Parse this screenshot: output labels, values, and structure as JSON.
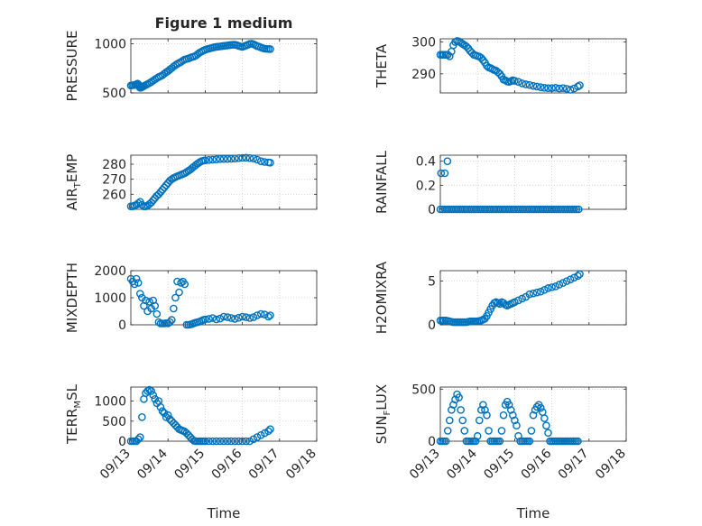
{
  "chart_data": [
    {
      "type": "scatter",
      "title": "Figure 1 medium",
      "ylabel": "PRESSURE",
      "xlabel": "",
      "xlim": [
        0,
        5
      ],
      "ylim": [
        500,
        1050
      ],
      "yticks": [
        500,
        1000
      ],
      "ytick_labels": [
        "500",
        "1000"
      ],
      "xticks": [
        0,
        1,
        2,
        3,
        4,
        5
      ],
      "xtick_labels": [],
      "marker_color": "#0072BD",
      "x": [
        0.0,
        0.04,
        0.08,
        0.12,
        0.15,
        0.18,
        0.2,
        0.22,
        0.24,
        0.26,
        0.28,
        0.3,
        0.33,
        0.36,
        0.4,
        0.44,
        0.5,
        0.55,
        0.6,
        0.65,
        0.7,
        0.75,
        0.8,
        0.85,
        0.9,
        0.95,
        1.0,
        1.05,
        1.1,
        1.15,
        1.2,
        1.25,
        1.3,
        1.35,
        1.4,
        1.45,
        1.5,
        1.55,
        1.6,
        1.65,
        1.7,
        1.75,
        1.8,
        1.85,
        1.9,
        1.95,
        2.0,
        2.05,
        2.1,
        2.15,
        2.2,
        2.25,
        2.3,
        2.35,
        2.4,
        2.45,
        2.5,
        2.55,
        2.6,
        2.65,
        2.7,
        2.75,
        2.8,
        2.85,
        2.9,
        2.95,
        3.0,
        3.05,
        3.1,
        3.15,
        3.2,
        3.25,
        3.3,
        3.35,
        3.4,
        3.45,
        3.5,
        3.55,
        3.6,
        3.65,
        3.7,
        3.75
      ],
      "y": [
        575,
        578,
        580,
        582,
        588,
        595,
        588,
        570,
        555,
        552,
        555,
        560,
        565,
        572,
        580,
        588,
        600,
        612,
        625,
        638,
        650,
        662,
        670,
        680,
        695,
        710,
        722,
        738,
        752,
        768,
        782,
        795,
        805,
        815,
        828,
        840,
        845,
        850,
        858,
        865,
        870,
        880,
        895,
        910,
        920,
        930,
        938,
        945,
        950,
        955,
        960,
        965,
        968,
        970,
        972,
        975,
        978,
        980,
        982,
        985,
        988,
        990,
        990,
        985,
        978,
        972,
        968,
        975,
        982,
        990,
        998,
        1000,
        995,
        985,
        975,
        970,
        962,
        955,
        950,
        948,
        946,
        945
      ]
    },
    {
      "type": "scatter",
      "title": "",
      "ylabel": "THETA",
      "xlabel": "",
      "xlim": [
        0,
        5
      ],
      "ylim": [
        284,
        301
      ],
      "yticks": [
        290,
        300
      ],
      "ytick_labels": [
        "290",
        "300"
      ],
      "xticks": [
        0,
        1,
        2,
        3,
        4,
        5
      ],
      "xtick_labels": [],
      "marker_color": "#0072BD",
      "x": [
        0.0,
        0.05,
        0.1,
        0.15,
        0.2,
        0.25,
        0.3,
        0.35,
        0.4,
        0.45,
        0.5,
        0.55,
        0.6,
        0.65,
        0.7,
        0.75,
        0.8,
        0.85,
        0.9,
        0.95,
        1.0,
        1.05,
        1.1,
        1.15,
        1.2,
        1.25,
        1.3,
        1.35,
        1.4,
        1.45,
        1.5,
        1.55,
        1.6,
        1.65,
        1.7,
        1.75,
        1.8,
        1.85,
        1.9,
        1.95,
        2.0,
        2.1,
        2.2,
        2.3,
        2.4,
        2.5,
        2.6,
        2.7,
        2.8,
        2.9,
        3.0,
        3.1,
        3.2,
        3.3,
        3.4,
        3.5,
        3.6,
        3.7,
        3.75
      ],
      "y": [
        296,
        296,
        296,
        296,
        296,
        295.5,
        297,
        299,
        300,
        300.3,
        300.2,
        299.8,
        299.4,
        299,
        298.6,
        298,
        297.2,
        296.6,
        296,
        295.8,
        295.6,
        295.4,
        295,
        294.3,
        293.5,
        292.5,
        292,
        291.8,
        291.5,
        291.2,
        291,
        290.5,
        290,
        289.2,
        288.2,
        288,
        287.6,
        287.5,
        287.7,
        288,
        287.8,
        287.5,
        287,
        286.7,
        286.5,
        286.2,
        286,
        285.8,
        285.6,
        285.5,
        285.5,
        285.6,
        285.4,
        285.5,
        285.3,
        285.0,
        285.4,
        286,
        286.4
      ]
    },
    {
      "type": "scatter",
      "title": "",
      "ylabel": "AIR_TEMP",
      "ylabel_main": "AIR",
      "ylabel_sub": "T",
      "ylabel_rest": "EMP",
      "xlabel": "",
      "xlim": [
        0,
        5
      ],
      "ylim": [
        250,
        286
      ],
      "yticks": [
        260,
        270,
        280
      ],
      "ytick_labels": [
        "260",
        "270",
        "280"
      ],
      "xticks": [
        0,
        1,
        2,
        3,
        4,
        5
      ],
      "xtick_labels": [],
      "marker_color": "#0072BD",
      "x": [
        0.0,
        0.05,
        0.1,
        0.15,
        0.2,
        0.25,
        0.3,
        0.35,
        0.4,
        0.45,
        0.5,
        0.55,
        0.6,
        0.65,
        0.7,
        0.75,
        0.8,
        0.85,
        0.9,
        0.95,
        1.0,
        1.05,
        1.1,
        1.15,
        1.2,
        1.25,
        1.3,
        1.35,
        1.4,
        1.45,
        1.5,
        1.55,
        1.6,
        1.65,
        1.7,
        1.75,
        1.8,
        1.85,
        1.9,
        1.95,
        2.0,
        2.1,
        2.2,
        2.3,
        2.4,
        2.5,
        2.6,
        2.7,
        2.8,
        2.9,
        3.0,
        3.1,
        3.2,
        3.3,
        3.4,
        3.5,
        3.6,
        3.7,
        3.75
      ],
      "y": [
        252,
        252,
        252.5,
        253,
        254,
        255,
        253,
        252,
        252,
        252.5,
        253.5,
        254.5,
        256,
        257.5,
        259,
        260,
        261.5,
        263,
        264.5,
        266,
        267.5,
        269,
        270,
        270.8,
        271.4,
        272,
        272.5,
        273,
        273.5,
        274,
        274.8,
        275.6,
        276.4,
        277.5,
        278.5,
        279.5,
        280.5,
        281.3,
        282,
        282.4,
        282.6,
        282.8,
        283,
        283.2,
        283.4,
        283.5,
        283.5,
        283.6,
        283.8,
        284,
        284.2,
        284.3,
        284.1,
        283.8,
        283,
        282,
        281.5,
        281.2,
        281
      ]
    },
    {
      "type": "scatter",
      "title": "",
      "ylabel": "RAINFALL",
      "xlabel": "",
      "xlim": [
        0,
        5
      ],
      "ylim": [
        0,
        0.45
      ],
      "yticks": [
        0,
        0.2,
        0.4
      ],
      "ytick_labels": [
        "0",
        "0.2",
        "0.4"
      ],
      "xticks": [
        0,
        1,
        2,
        3,
        4,
        5
      ],
      "xtick_labels": [],
      "marker_color": "#0072BD",
      "x": [
        0.0,
        0.06,
        0.12,
        0.18,
        0.24,
        0.3,
        0.36,
        0.42,
        0.48,
        0.54,
        0.6,
        0.66,
        0.72,
        0.78,
        0.84,
        0.9,
        0.96,
        1.02,
        1.08,
        1.14,
        1.2,
        1.26,
        1.32,
        1.38,
        1.44,
        1.5,
        1.56,
        1.62,
        1.68,
        1.74,
        1.8,
        1.86,
        1.92,
        1.98,
        2.04,
        2.1,
        2.16,
        2.22,
        2.28,
        2.34,
        2.4,
        2.46,
        2.52,
        2.58,
        2.64,
        2.7,
        2.76,
        2.82,
        2.88,
        2.94,
        3.0,
        3.06,
        3.12,
        3.18,
        3.24,
        3.3,
        3.36,
        3.42,
        3.48,
        3.54,
        3.6,
        3.66,
        3.72,
        0.02,
        0.12,
        0.19
      ],
      "y": [
        0,
        0,
        0,
        0,
        0,
        0,
        0,
        0,
        0,
        0,
        0,
        0,
        0,
        0,
        0,
        0,
        0,
        0,
        0,
        0,
        0,
        0,
        0,
        0,
        0,
        0,
        0,
        0,
        0,
        0,
        0,
        0,
        0,
        0,
        0,
        0,
        0,
        0,
        0,
        0,
        0,
        0,
        0,
        0,
        0,
        0,
        0,
        0,
        0,
        0,
        0,
        0,
        0,
        0,
        0,
        0,
        0,
        0,
        0,
        0,
        0,
        0,
        0,
        0.3,
        0.3,
        0.4
      ]
    },
    {
      "type": "scatter",
      "title": "",
      "ylabel": "MIXDEPTH",
      "xlabel": "",
      "xlim": [
        0,
        5
      ],
      "ylim": [
        0,
        2000
      ],
      "yticks": [
        0,
        1000,
        2000
      ],
      "ytick_labels": [
        "0",
        "1000",
        "2000"
      ],
      "xticks": [
        0,
        1,
        2,
        3,
        4,
        5
      ],
      "xtick_labels": [],
      "marker_color": "#0072BD",
      "x": [
        0.0,
        0.05,
        0.1,
        0.15,
        0.2,
        0.25,
        0.3,
        0.35,
        0.4,
        0.45,
        0.5,
        0.55,
        0.6,
        0.65,
        0.7,
        0.75,
        0.8,
        0.85,
        0.9,
        0.95,
        1.0,
        1.05,
        1.1,
        1.15,
        1.2,
        1.25,
        1.3,
        1.35,
        1.4,
        1.45,
        1.5,
        1.55,
        1.6,
        1.65,
        1.7,
        1.75,
        1.8,
        1.85,
        1.9,
        1.95,
        2.0,
        2.1,
        2.2,
        2.3,
        2.4,
        2.5,
        2.6,
        2.7,
        2.8,
        2.9,
        3.0,
        3.1,
        3.2,
        3.3,
        3.4,
        3.5,
        3.6,
        3.7,
        3.75
      ],
      "y": [
        1700,
        1600,
        1500,
        1700,
        1550,
        1150,
        1000,
        700,
        900,
        500,
        850,
        600,
        900,
        700,
        400,
        100,
        50,
        50,
        50,
        60,
        50,
        100,
        180,
        600,
        1000,
        1600,
        1200,
        1550,
        1600,
        1500,
        0,
        0,
        10,
        30,
        60,
        80,
        100,
        120,
        150,
        180,
        200,
        220,
        250,
        200,
        230,
        300,
        280,
        250,
        220,
        260,
        300,
        280,
        250,
        280,
        350,
        400,
        380,
        300,
        350
      ]
    },
    {
      "type": "scatter",
      "title": "",
      "ylabel": "H2OMIXRA",
      "xlabel": "",
      "xlim": [
        0,
        5
      ],
      "ylim": [
        0,
        6.2
      ],
      "yticks": [
        0,
        5
      ],
      "ytick_labels": [
        "0",
        "5"
      ],
      "xticks": [
        0,
        1,
        2,
        3,
        4,
        5
      ],
      "xtick_labels": [],
      "marker_color": "#0072BD",
      "x": [
        0.0,
        0.05,
        0.1,
        0.15,
        0.2,
        0.25,
        0.3,
        0.35,
        0.4,
        0.45,
        0.5,
        0.55,
        0.6,
        0.65,
        0.7,
        0.75,
        0.8,
        0.85,
        0.9,
        0.95,
        1.0,
        1.05,
        1.1,
        1.15,
        1.2,
        1.25,
        1.3,
        1.35,
        1.4,
        1.45,
        1.5,
        1.55,
        1.6,
        1.65,
        1.7,
        1.75,
        1.8,
        1.85,
        1.9,
        1.95,
        2.0,
        2.1,
        2.2,
        2.3,
        2.4,
        2.5,
        2.6,
        2.7,
        2.8,
        2.9,
        3.0,
        3.1,
        3.2,
        3.3,
        3.4,
        3.5,
        3.6,
        3.7,
        3.75
      ],
      "y": [
        0.5,
        0.5,
        0.5,
        0.5,
        0.45,
        0.4,
        0.35,
        0.3,
        0.3,
        0.3,
        0.3,
        0.3,
        0.3,
        0.3,
        0.3,
        0.35,
        0.4,
        0.4,
        0.4,
        0.4,
        0.4,
        0.45,
        0.5,
        0.6,
        0.7,
        1.0,
        1.4,
        1.8,
        2.2,
        2.5,
        2.6,
        2.5,
        2.4,
        2.6,
        2.5,
        2.3,
        2.2,
        2.3,
        2.4,
        2.5,
        2.6,
        2.8,
        3.0,
        3.2,
        3.5,
        3.6,
        3.7,
        3.8,
        4.0,
        4.2,
        4.3,
        4.4,
        4.6,
        4.8,
        5.0,
        5.2,
        5.4,
        5.6,
        5.8
      ]
    },
    {
      "type": "scatter",
      "title": "",
      "ylabel": "TERR_MSL",
      "ylabel_main": "TERR",
      "ylabel_sub": "M",
      "ylabel_rest": "SL",
      "xlabel": "Time",
      "xlim": [
        0,
        5
      ],
      "ylim": [
        0,
        1350
      ],
      "yticks": [
        0,
        500,
        1000
      ],
      "ytick_labels": [
        "0",
        "500",
        "1000"
      ],
      "xticks": [
        0,
        1,
        2,
        3,
        4,
        5
      ],
      "xtick_labels": [
        "09/13",
        "09/14",
        "09/15",
        "09/16",
        "09/17",
        "09/18"
      ],
      "marker_color": "#0072BD",
      "x": [
        0.0,
        0.05,
        0.1,
        0.15,
        0.2,
        0.25,
        0.3,
        0.35,
        0.4,
        0.45,
        0.5,
        0.55,
        0.6,
        0.65,
        0.7,
        0.75,
        0.8,
        0.85,
        0.9,
        0.95,
        1.0,
        1.05,
        1.1,
        1.15,
        1.2,
        1.25,
        1.3,
        1.35,
        1.4,
        1.45,
        1.5,
        1.55,
        1.6,
        1.65,
        1.7,
        1.75,
        1.8,
        1.85,
        1.9,
        1.95,
        2.0,
        2.1,
        2.2,
        2.3,
        2.4,
        2.5,
        2.6,
        2.7,
        2.8,
        2.9,
        3.0,
        3.1,
        3.2,
        3.3,
        3.4,
        3.5,
        3.6,
        3.7,
        3.75
      ],
      "y": [
        0,
        0,
        0,
        0,
        50,
        100,
        600,
        1050,
        1200,
        1250,
        1280,
        1250,
        1150,
        1050,
        950,
        1000,
        850,
        750,
        700,
        600,
        650,
        550,
        500,
        450,
        400,
        350,
        300,
        280,
        260,
        240,
        200,
        150,
        100,
        50,
        10,
        0,
        0,
        0,
        0,
        0,
        0,
        0,
        0,
        0,
        0,
        0,
        0,
        0,
        0,
        0,
        0,
        0,
        0,
        50,
        100,
        150,
        200,
        250,
        300
      ]
    },
    {
      "type": "scatter",
      "title": "",
      "ylabel": "SUN_FLUX",
      "ylabel_main": "SUN",
      "ylabel_sub": "F",
      "ylabel_rest": "LUX",
      "xlabel": "Time",
      "xlim": [
        0,
        5
      ],
      "ylim": [
        0,
        520
      ],
      "yticks": [
        0,
        500
      ],
      "ytick_labels": [
        "0",
        "500"
      ],
      "xticks": [
        0,
        1,
        2,
        3,
        4,
        5
      ],
      "xtick_labels": [
        "09/13",
        "09/14",
        "09/15",
        "09/16",
        "09/17",
        "09/18"
      ],
      "marker_color": "#0072BD",
      "x": [
        0.0,
        0.05,
        0.1,
        0.15,
        0.2,
        0.25,
        0.3,
        0.35,
        0.4,
        0.45,
        0.5,
        0.55,
        0.6,
        0.65,
        0.7,
        0.75,
        0.8,
        0.85,
        0.9,
        0.95,
        1.0,
        1.05,
        1.1,
        1.15,
        1.2,
        1.25,
        1.3,
        1.35,
        1.4,
        1.45,
        1.5,
        1.55,
        1.6,
        1.65,
        1.7,
        1.75,
        1.8,
        1.85,
        1.9,
        1.95,
        2.0,
        2.05,
        2.1,
        2.15,
        2.2,
        2.25,
        2.3,
        2.35,
        2.4,
        2.45,
        2.5,
        2.55,
        2.6,
        2.65,
        2.7,
        2.75,
        2.8,
        2.85,
        2.9,
        2.95,
        3.0,
        3.05,
        3.1,
        3.15,
        3.2,
        3.25,
        3.3,
        3.35,
        3.4,
        3.45,
        3.5,
        3.55,
        3.6,
        3.65,
        3.7
      ],
      "y": [
        0,
        0,
        0,
        0,
        100,
        200,
        300,
        350,
        400,
        450,
        420,
        300,
        200,
        100,
        0,
        0,
        0,
        0,
        0,
        0,
        50,
        200,
        300,
        350,
        300,
        250,
        100,
        0,
        0,
        0,
        0,
        0,
        0,
        100,
        250,
        350,
        380,
        350,
        300,
        250,
        200,
        150,
        50,
        0,
        0,
        0,
        0,
        0,
        0,
        100,
        250,
        300,
        330,
        350,
        320,
        280,
        220,
        150,
        80,
        0,
        0,
        0,
        0,
        0,
        0,
        0,
        0,
        0,
        0,
        0,
        0,
        0,
        0,
        0,
        0
      ]
    }
  ]
}
